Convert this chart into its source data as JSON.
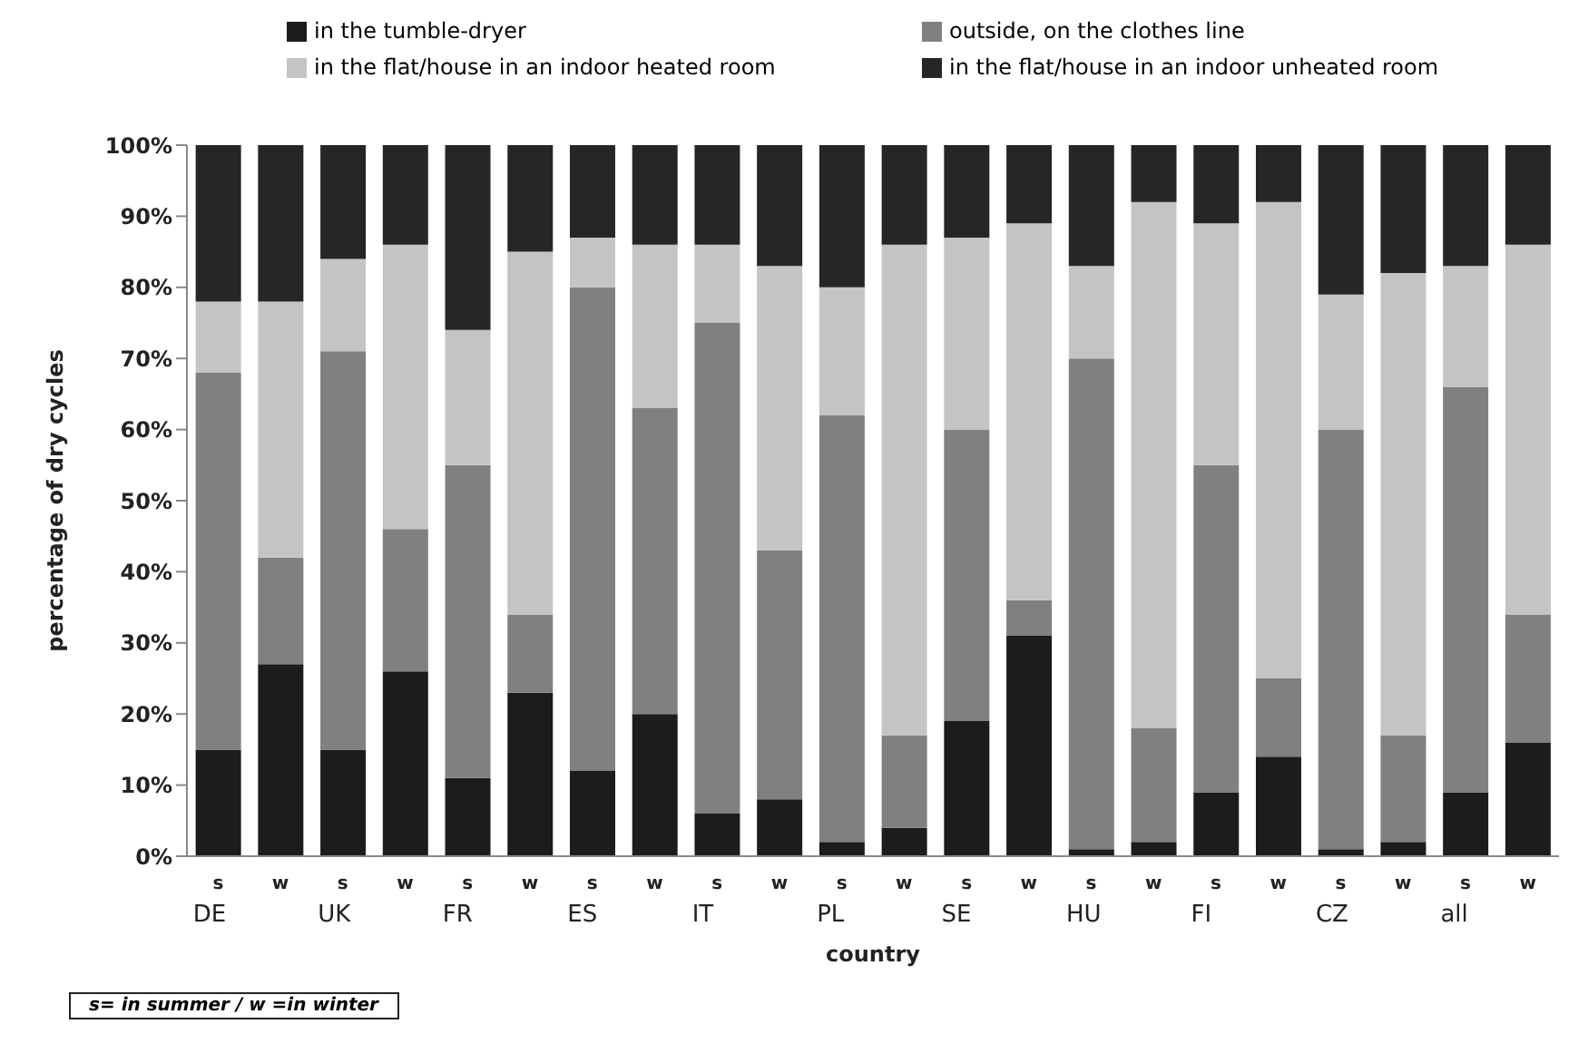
{
  "chart_data": {
    "type": "bar",
    "stacked": true,
    "xlabel": "country",
    "ylabel": "percentage of dry cycles",
    "categories": [
      "s",
      "w",
      "s",
      "w",
      "s",
      "w",
      "s",
      "w",
      "s",
      "w",
      "s",
      "w",
      "s",
      "w",
      "s",
      "w",
      "s",
      "w",
      "s",
      "w",
      "s",
      "w"
    ],
    "series": [
      {
        "name": "in the tumble-dryer",
        "color": "#1c1c1c",
        "values": [
          15,
          27,
          15,
          26,
          11,
          23,
          12,
          20,
          6,
          8,
          2,
          4,
          19,
          31,
          1,
          2,
          9,
          14,
          1,
          2,
          9,
          16
        ]
      },
      {
        "name": "outside, on the clothes line",
        "color": "#808080",
        "values": [
          53,
          15,
          56,
          20,
          44,
          11,
          68,
          43,
          69,
          35,
          60,
          13,
          41,
          5,
          69,
          16,
          46,
          11,
          59,
          15,
          57,
          18
        ]
      },
      {
        "name": "in the flat/house in an indoor heated room",
        "color": "#c4c4c4",
        "values": [
          10,
          36,
          13,
          40,
          19,
          51,
          7,
          23,
          11,
          40,
          18,
          69,
          27,
          53,
          13,
          74,
          34,
          67,
          19,
          65,
          17,
          52
        ]
      },
      {
        "name": "in the flat/house in an indoor unheated room",
        "color": "#262626",
        "values": [
          22,
          22,
          16,
          14,
          26,
          15,
          13,
          14,
          14,
          17,
          20,
          14,
          13,
          11,
          17,
          8,
          11,
          8,
          21,
          18,
          17,
          14
        ]
      }
    ],
    "ylim": [
      0,
      100
    ],
    "yticks": [
      {
        "value": 0,
        "label": "0%"
      },
      {
        "value": 10,
        "label": "10%"
      },
      {
        "value": 20,
        "label": "20%"
      },
      {
        "value": 30,
        "label": "30%"
      },
      {
        "value": 40,
        "label": "40%"
      },
      {
        "value": 50,
        "label": "50%"
      },
      {
        "value": 60,
        "label": "60%"
      },
      {
        "value": 70,
        "label": "70%"
      },
      {
        "value": 80,
        "label": "80%"
      },
      {
        "value": 90,
        "label": "90%"
      },
      {
        "value": 100,
        "label": "100%"
      }
    ],
    "grid": false,
    "legend": "top",
    "annotations": [
      "DE",
      "UK",
      "FR",
      "ES",
      "IT",
      "PL",
      "SE",
      "HU",
      "FI",
      "CZ",
      "all",
      "s= in summer / w =in winter"
    ]
  }
}
